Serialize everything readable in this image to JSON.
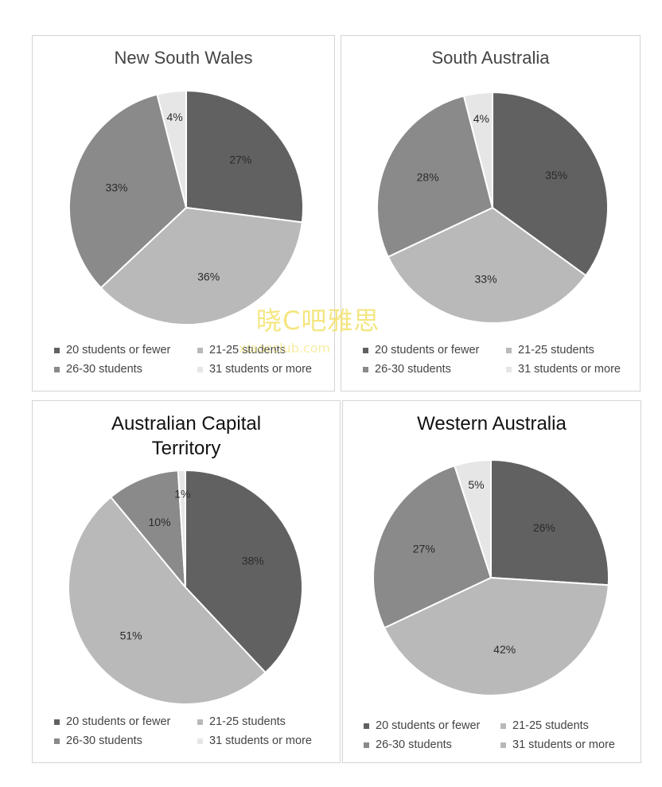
{
  "chart_data": [
    {
      "type": "pie",
      "title": "New South Wales",
      "categories": [
        "20 students or fewer",
        "21-25 students",
        "26-30 students",
        "31 students or more"
      ],
      "values": [
        27,
        36,
        33,
        4
      ],
      "labels": [
        "27%",
        "36%",
        "33%",
        "4%"
      ],
      "colors": [
        "#616161",
        "#b9b9b9",
        "#8a8a8a",
        "#e6e6e6"
      ],
      "legend": "bottom",
      "legend_swatch_colors": [
        "#616161",
        "#b9b9b9",
        "#8a8a8a",
        "#e6e6e6"
      ]
    },
    {
      "type": "pie",
      "title": "South Australia",
      "categories": [
        "20 students or fewer",
        "21-25 students",
        "26-30 students",
        "31 students or more"
      ],
      "values": [
        35,
        33,
        28,
        4
      ],
      "labels": [
        "35%",
        "33%",
        "28%",
        "4%"
      ],
      "colors": [
        "#616161",
        "#b9b9b9",
        "#8a8a8a",
        "#e6e6e6"
      ],
      "legend": "bottom",
      "legend_swatch_colors": [
        "#616161",
        "#b9b9b9",
        "#8a8a8a",
        "#e6e6e6"
      ]
    },
    {
      "type": "pie",
      "title": "Australian Capital\nTerritory",
      "categories": [
        "20 students or fewer",
        "21-25 students",
        "26-30 students",
        "31 students or more"
      ],
      "values": [
        38,
        51,
        10,
        1
      ],
      "labels": [
        "38%",
        "51%",
        "10%",
        "1%"
      ],
      "colors": [
        "#616161",
        "#b9b9b9",
        "#8a8a8a",
        "#e6e6e6"
      ],
      "legend": "bottom",
      "legend_swatch_colors": [
        "#616161",
        "#b9b9b9",
        "#8a8a8a",
        "#e6e6e6"
      ]
    },
    {
      "type": "pie",
      "title": "Western Australia",
      "categories": [
        "20 students or fewer",
        "21-25 students",
        "26-30 students",
        "31 students or more"
      ],
      "values": [
        26,
        42,
        27,
        5
      ],
      "labels": [
        "26%",
        "42%",
        "27%",
        "5%"
      ],
      "colors": [
        "#616161",
        "#b9b9b9",
        "#8a8a8a",
        "#e6e6e6"
      ],
      "legend": "bottom",
      "legend_swatch_colors": [
        "#616161",
        "#b9b9b9",
        "#8a8a8a",
        "#b9b9b9"
      ]
    }
  ],
  "watermark": {
    "text": "晓C吧雅思",
    "subtext": "xiaocclub.com",
    "color": "#f3e26a"
  }
}
